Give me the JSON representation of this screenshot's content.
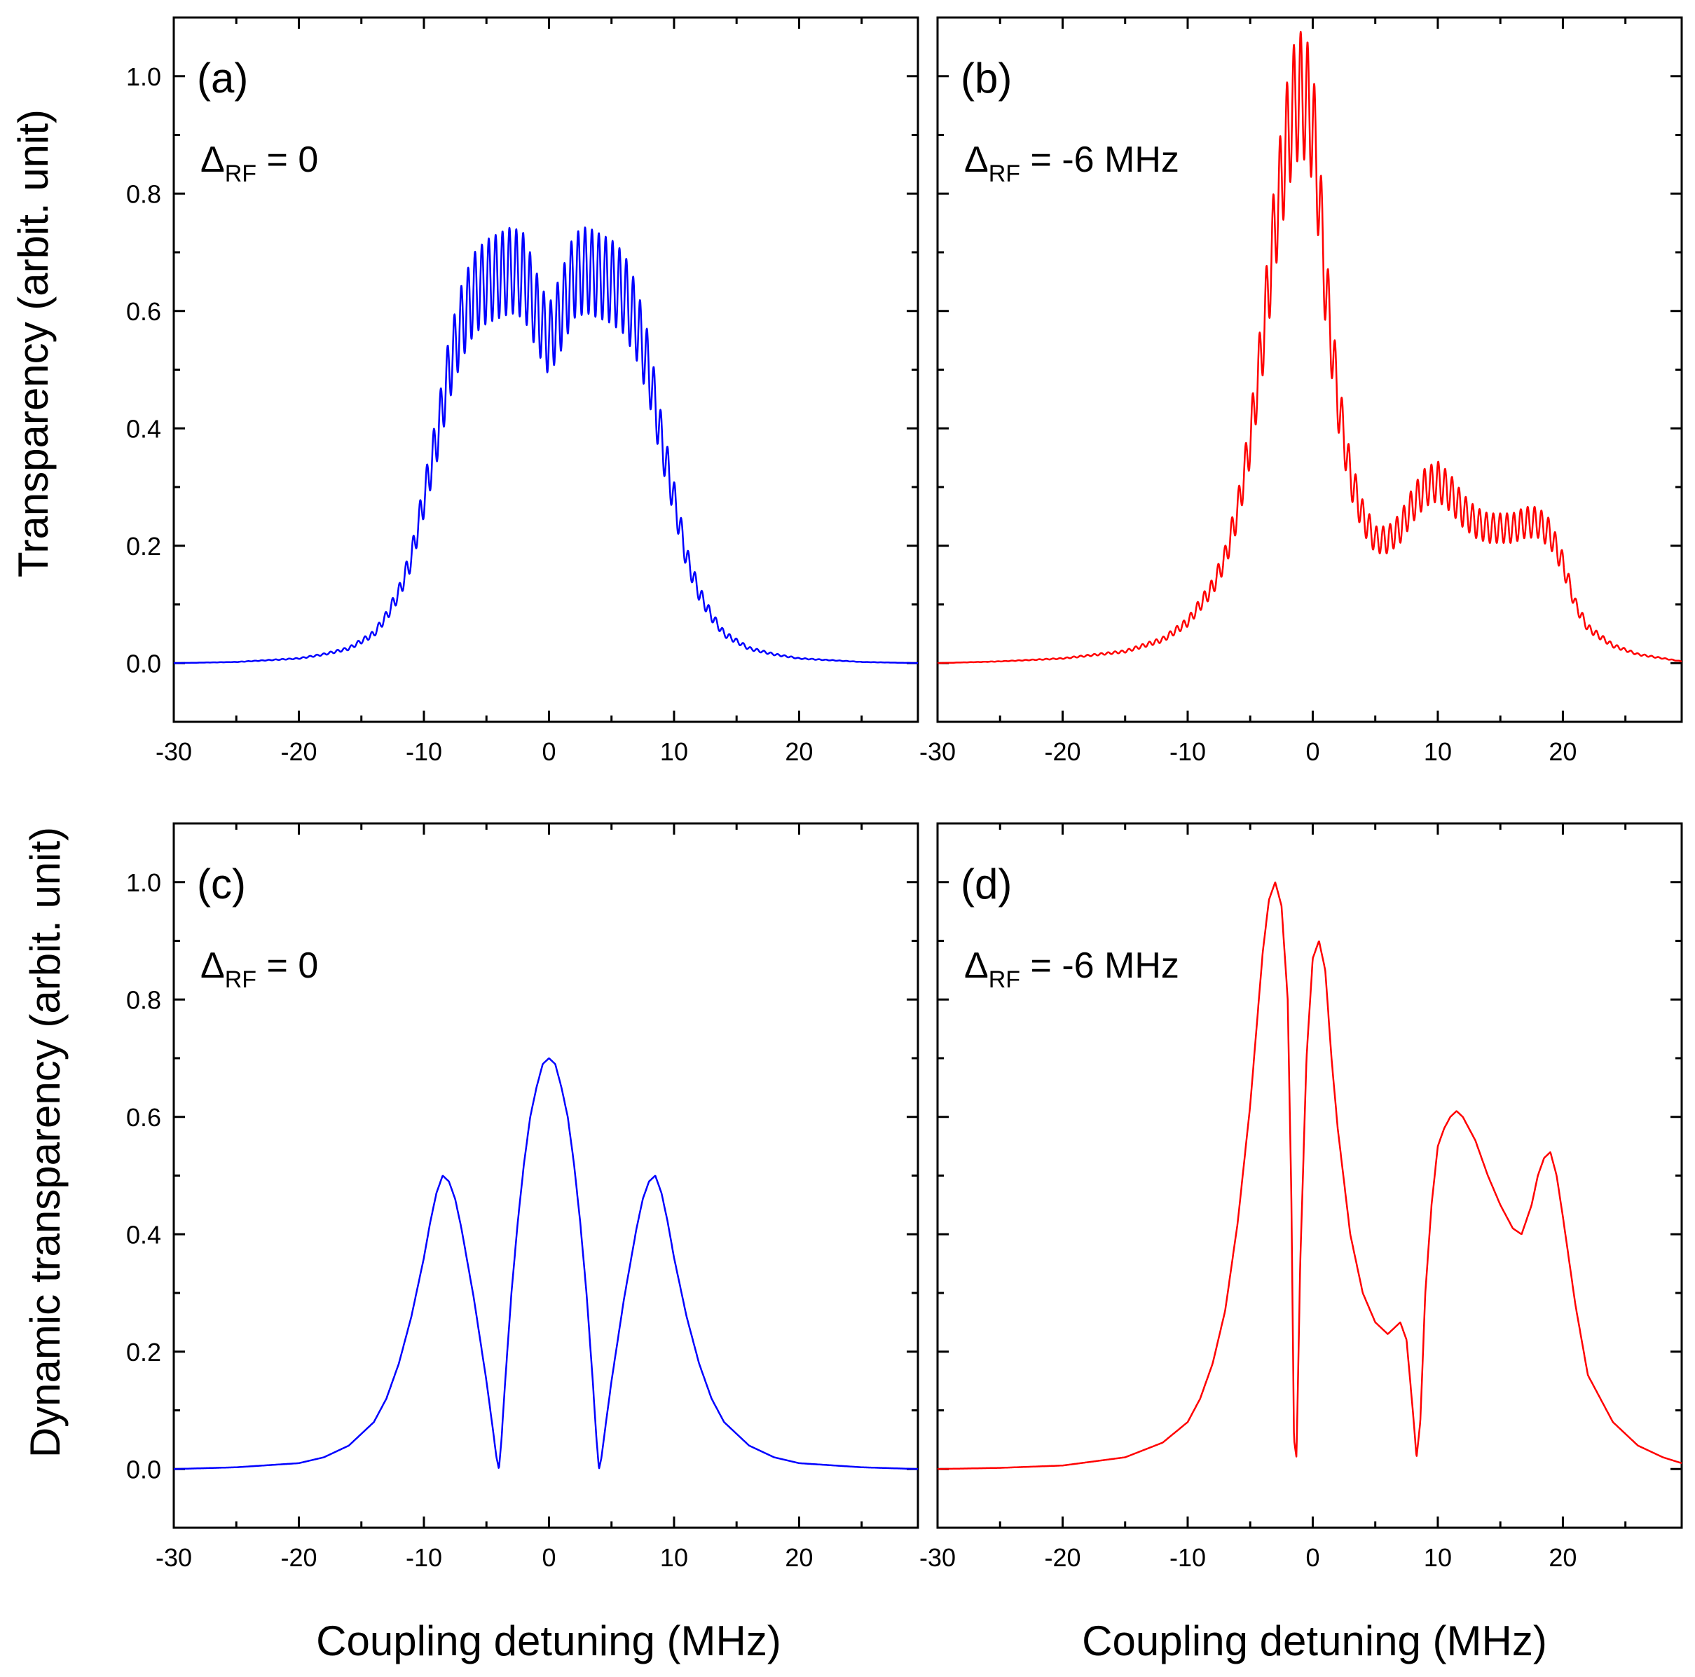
{
  "figure": {
    "ylabel_top": "Transparency (arbit. unit)",
    "ylabel_bottom": "Dynamic transparency (arbit. unit)",
    "xlabel_left": "Coupling detuning (MHz)",
    "xlabel_right": "Coupling detuning (MHz)"
  },
  "chart_data": [
    {
      "id": "a",
      "type": "line",
      "panel_label": "(a)",
      "annotation": {
        "delta": "Δ",
        "sub": "RF",
        "rest": " = 0"
      },
      "color": "#0000ff",
      "xlim": [
        -30,
        29.5
      ],
      "ylim": [
        -0.1,
        1.1
      ],
      "xticks": [
        -30,
        -20,
        -10,
        0,
        10,
        20
      ],
      "xtick_labels": [
        "-30",
        "-20",
        "-10",
        "0",
        "10",
        "20"
      ],
      "yticks": [
        0.0,
        0.2,
        0.4,
        0.6,
        0.8,
        1.0
      ],
      "ytick_labels": [
        "0.0",
        "0.2",
        "0.4",
        "0.6",
        "0.8",
        "1.0"
      ],
      "xlabel": "",
      "ylabel": "Transparency (arbit. unit)",
      "series": [
        {
          "name": "Δ_RF = 0",
          "x": [
            -30,
            -25,
            -20,
            -18,
            -16,
            -14,
            -13,
            -12,
            -11,
            -10,
            -9,
            -8,
            -7,
            -6,
            -5,
            -4,
            -3,
            -2,
            -1,
            0,
            1,
            2,
            3,
            4,
            5,
            6,
            7,
            8,
            9,
            10,
            11,
            12,
            13,
            14,
            16,
            18,
            20,
            25,
            29.5
          ],
          "y": [
            0.0,
            0.002,
            0.008,
            0.015,
            0.025,
            0.05,
            0.08,
            0.12,
            0.18,
            0.28,
            0.38,
            0.5,
            0.58,
            0.63,
            0.65,
            0.66,
            0.67,
            0.66,
            0.6,
            0.55,
            0.6,
            0.66,
            0.67,
            0.66,
            0.65,
            0.63,
            0.58,
            0.5,
            0.38,
            0.28,
            0.18,
            0.12,
            0.08,
            0.05,
            0.025,
            0.015,
            0.008,
            0.002,
            0.0
          ],
          "ripple": true
        }
      ]
    },
    {
      "id": "b",
      "type": "line",
      "panel_label": "(b)",
      "annotation": {
        "delta": "Δ",
        "sub": "RF",
        "rest": " = -6 MHz"
      },
      "color": "#ff0000",
      "xlim": [
        -30,
        29.5
      ],
      "ylim": [
        -0.1,
        1.1
      ],
      "xticks": [
        -30,
        -20,
        -10,
        0,
        10,
        20
      ],
      "xtick_labels": [
        "-30",
        "-20",
        "-10",
        "0",
        "10",
        "20"
      ],
      "yticks": [
        0.0,
        0.2,
        0.4,
        0.6,
        0.8,
        1.0
      ],
      "ytick_labels": [
        "0.0",
        "0.2",
        "0.4",
        "0.6",
        "0.8",
        "1.0"
      ],
      "xlabel": "",
      "ylabel": "",
      "series": [
        {
          "name": "Δ_RF = -6 MHz",
          "x": [
            -30,
            -25,
            -20,
            -15,
            -12,
            -10,
            -8,
            -7,
            -6,
            -5,
            -4,
            -3,
            -2,
            -1.5,
            -1,
            -0.5,
            0,
            0.5,
            1,
            2,
            3,
            4,
            5,
            6,
            7,
            8,
            9,
            10,
            11,
            12,
            13,
            14,
            15,
            16,
            17,
            18,
            19,
            20,
            21,
            22,
            24,
            26,
            29.5
          ],
          "y": [
            0.0,
            0.003,
            0.008,
            0.02,
            0.04,
            0.07,
            0.13,
            0.18,
            0.26,
            0.38,
            0.55,
            0.75,
            0.9,
            0.95,
            0.97,
            0.96,
            0.92,
            0.8,
            0.65,
            0.45,
            0.32,
            0.25,
            0.21,
            0.21,
            0.23,
            0.27,
            0.3,
            0.31,
            0.29,
            0.26,
            0.24,
            0.23,
            0.23,
            0.23,
            0.24,
            0.24,
            0.22,
            0.17,
            0.1,
            0.06,
            0.03,
            0.015,
            0.003
          ],
          "ripple": true
        }
      ]
    },
    {
      "id": "c",
      "type": "line",
      "panel_label": "(c)",
      "annotation": {
        "delta": "Δ",
        "sub": "RF",
        "rest": " = 0"
      },
      "color": "#0000ff",
      "xlim": [
        -30,
        29.5
      ],
      "ylim": [
        -0.1,
        1.1
      ],
      "xticks": [
        -30,
        -20,
        -10,
        0,
        10,
        20
      ],
      "xtick_labels": [
        "-30",
        "-20",
        "-10",
        "0",
        "10",
        "20"
      ],
      "yticks": [
        0.0,
        0.2,
        0.4,
        0.6,
        0.8,
        1.0
      ],
      "ytick_labels": [
        "0.0",
        "0.2",
        "0.4",
        "0.6",
        "0.8",
        "1.0"
      ],
      "xlabel": "Coupling detuning (MHz)",
      "ylabel": "Dynamic transparency (arbit. unit)",
      "series": [
        {
          "name": "Δ_RF = 0",
          "x": [
            -30,
            -25,
            -20,
            -18,
            -16,
            -14,
            -13,
            -12,
            -11,
            -10,
            -9.5,
            -9,
            -8.5,
            -8,
            -7.5,
            -7,
            -6,
            -5,
            -4.5,
            -4.2,
            -4.0,
            -3.8,
            -3.5,
            -3,
            -2.5,
            -2,
            -1.5,
            -1,
            -0.5,
            0,
            0.5,
            1,
            1.5,
            2,
            2.5,
            3,
            3.5,
            3.8,
            4.0,
            4.2,
            4.5,
            5,
            6,
            7,
            7.5,
            8,
            8.5,
            9,
            9.5,
            10,
            11,
            12,
            13,
            14,
            16,
            18,
            20,
            25,
            29.5
          ],
          "y": [
            0.0,
            0.003,
            0.01,
            0.02,
            0.04,
            0.08,
            0.12,
            0.18,
            0.26,
            0.36,
            0.42,
            0.47,
            0.5,
            0.49,
            0.46,
            0.41,
            0.29,
            0.15,
            0.07,
            0.02,
            0.0,
            0.05,
            0.15,
            0.3,
            0.42,
            0.52,
            0.6,
            0.65,
            0.69,
            0.7,
            0.69,
            0.65,
            0.6,
            0.52,
            0.42,
            0.3,
            0.15,
            0.05,
            0.0,
            0.02,
            0.07,
            0.15,
            0.29,
            0.41,
            0.46,
            0.49,
            0.5,
            0.47,
            0.42,
            0.36,
            0.26,
            0.18,
            0.12,
            0.08,
            0.04,
            0.02,
            0.01,
            0.003,
            0.0
          ],
          "ripple": false
        }
      ]
    },
    {
      "id": "d",
      "type": "line",
      "panel_label": "(d)",
      "annotation": {
        "delta": "Δ",
        "sub": "RF",
        "rest": " = -6 MHz"
      },
      "color": "#ff0000",
      "xlim": [
        -30,
        29.5
      ],
      "ylim": [
        -0.1,
        1.1
      ],
      "xticks": [
        -30,
        -20,
        -10,
        0,
        10,
        20
      ],
      "xtick_labels": [
        "-30",
        "-20",
        "-10",
        "0",
        "10",
        "20"
      ],
      "yticks": [
        0.0,
        0.2,
        0.4,
        0.6,
        0.8,
        1.0
      ],
      "ytick_labels": [
        "0.0",
        "0.2",
        "0.4",
        "0.6",
        "0.8",
        "1.0"
      ],
      "xlabel": "Coupling detuning (MHz)",
      "ylabel": "",
      "series": [
        {
          "name": "Δ_RF = -6 MHz",
          "x": [
            -30,
            -25,
            -20,
            -15,
            -12,
            -10,
            -9,
            -8,
            -7,
            -6,
            -5,
            -4.5,
            -4,
            -3.5,
            -3,
            -2.5,
            -2,
            -1.7,
            -1.5,
            -1.3,
            -1,
            -0.5,
            0,
            0.5,
            1,
            1.5,
            2,
            3,
            4,
            5,
            6,
            6.5,
            7,
            7.5,
            8,
            8.3,
            8.6,
            9,
            9.5,
            10,
            10.5,
            11,
            11.5,
            12,
            13,
            14,
            15,
            16,
            16.7,
            17.5,
            18,
            18.5,
            19,
            19.5,
            20,
            21,
            22,
            24,
            26,
            28,
            29.5
          ],
          "y": [
            0.0,
            0.002,
            0.006,
            0.02,
            0.045,
            0.08,
            0.12,
            0.18,
            0.27,
            0.42,
            0.62,
            0.75,
            0.88,
            0.97,
            1.0,
            0.96,
            0.8,
            0.45,
            0.05,
            0.02,
            0.35,
            0.7,
            0.87,
            0.9,
            0.85,
            0.7,
            0.58,
            0.4,
            0.3,
            0.25,
            0.23,
            0.24,
            0.25,
            0.22,
            0.1,
            0.02,
            0.08,
            0.3,
            0.45,
            0.55,
            0.58,
            0.6,
            0.61,
            0.6,
            0.56,
            0.5,
            0.45,
            0.41,
            0.4,
            0.45,
            0.5,
            0.53,
            0.54,
            0.5,
            0.43,
            0.28,
            0.16,
            0.08,
            0.04,
            0.02,
            0.01
          ],
          "ripple": false
        }
      ]
    }
  ]
}
